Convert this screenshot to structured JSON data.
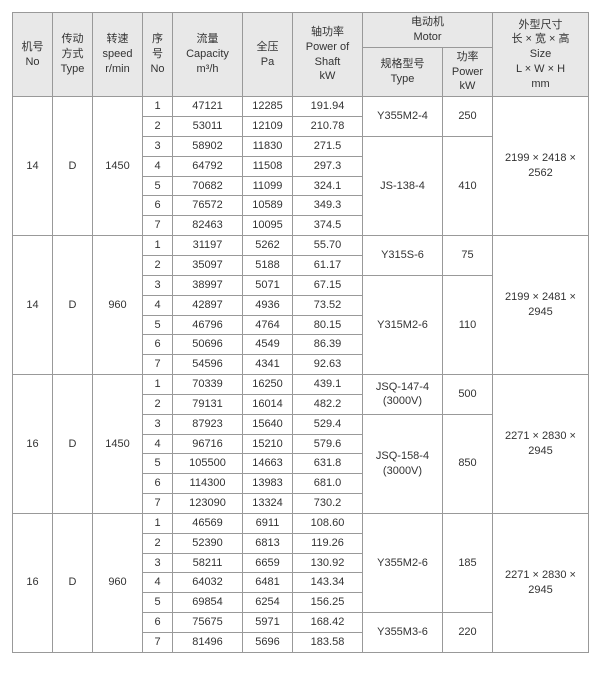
{
  "headers": {
    "no": [
      "机号",
      "No"
    ],
    "type": [
      "传动",
      "方式",
      "Type"
    ],
    "speed": [
      "转速",
      "speed",
      "r/min"
    ],
    "seq": [
      "序",
      "号",
      "No"
    ],
    "capacity": [
      "流量",
      "Capacity",
      "m³/h"
    ],
    "pressure": [
      "全压",
      "Pa"
    ],
    "shaft": [
      "轴功率",
      "Power of",
      "Shaft",
      "kW"
    ],
    "motor_group": [
      "电动机",
      "Motor"
    ],
    "motor_model": [
      "规格型号",
      "Type"
    ],
    "motor_power": [
      "功率",
      "Power",
      "kW"
    ],
    "size": [
      "外型尺寸",
      "长 × 宽 × 高",
      "Size",
      "L × W × H",
      "mm"
    ]
  },
  "groups": [
    {
      "no": "14",
      "type": "D",
      "speed": "1450",
      "size": "2199 × 2418 × 2562",
      "rows": [
        {
          "seq": "1",
          "cap": "47121",
          "p": "12285",
          "sh": "191.94"
        },
        {
          "seq": "2",
          "cap": "53011",
          "p": "12109",
          "sh": "210.78"
        },
        {
          "seq": "3",
          "cap": "58902",
          "p": "11830",
          "sh": "271.5"
        },
        {
          "seq": "4",
          "cap": "64792",
          "p": "11508",
          "sh": "297.3"
        },
        {
          "seq": "5",
          "cap": "70682",
          "p": "11099",
          "sh": "324.1"
        },
        {
          "seq": "6",
          "cap": "76572",
          "p": "10589",
          "sh": "349.3"
        },
        {
          "seq": "7",
          "cap": "82463",
          "p": "10095",
          "sh": "374.5"
        }
      ],
      "motors": [
        {
          "model": "Y355M2-4",
          "power": "250",
          "rows": 2
        },
        {
          "model": "JS-138-4",
          "power": "410",
          "rows": 5
        }
      ]
    },
    {
      "no": "14",
      "type": "D",
      "speed": "960",
      "size": "2199 × 2481 × 2945",
      "rows": [
        {
          "seq": "1",
          "cap": "31197",
          "p": "5262",
          "sh": "55.70"
        },
        {
          "seq": "2",
          "cap": "35097",
          "p": "5188",
          "sh": "61.17"
        },
        {
          "seq": "3",
          "cap": "38997",
          "p": "5071",
          "sh": "67.15"
        },
        {
          "seq": "4",
          "cap": "42897",
          "p": "4936",
          "sh": "73.52"
        },
        {
          "seq": "5",
          "cap": "46796",
          "p": "4764",
          "sh": "80.15"
        },
        {
          "seq": "6",
          "cap": "50696",
          "p": "4549",
          "sh": "86.39"
        },
        {
          "seq": "7",
          "cap": "54596",
          "p": "4341",
          "sh": "92.63"
        }
      ],
      "motors": [
        {
          "model": "Y315S-6",
          "power": "75",
          "rows": 2
        },
        {
          "model": "Y315M2-6",
          "power": "110",
          "rows": 5
        }
      ]
    },
    {
      "no": "16",
      "type": "D",
      "speed": "1450",
      "size": "2271 × 2830 × 2945",
      "rows": [
        {
          "seq": "1",
          "cap": "70339",
          "p": "16250",
          "sh": "439.1"
        },
        {
          "seq": "2",
          "cap": "79131",
          "p": "16014",
          "sh": "482.2"
        },
        {
          "seq": "3",
          "cap": "87923",
          "p": "15640",
          "sh": "529.4"
        },
        {
          "seq": "4",
          "cap": "96716",
          "p": "15210",
          "sh": "579.6"
        },
        {
          "seq": "5",
          "cap": "105500",
          "p": "14663",
          "sh": "631.8"
        },
        {
          "seq": "6",
          "cap": "114300",
          "p": "13983",
          "sh": "681.0"
        },
        {
          "seq": "7",
          "cap": "123090",
          "p": "13324",
          "sh": "730.2"
        }
      ],
      "motors": [
        {
          "model": "JSQ-147-4 (3000V)",
          "power": "500",
          "rows": 2
        },
        {
          "model": "JSQ-158-4 (3000V)",
          "power": "850",
          "rows": 5
        }
      ]
    },
    {
      "no": "16",
      "type": "D",
      "speed": "960",
      "size": "2271 × 2830 × 2945",
      "rows": [
        {
          "seq": "1",
          "cap": "46569",
          "p": "6911",
          "sh": "108.60"
        },
        {
          "seq": "2",
          "cap": "52390",
          "p": "6813",
          "sh": "119.26"
        },
        {
          "seq": "3",
          "cap": "58211",
          "p": "6659",
          "sh": "130.92"
        },
        {
          "seq": "4",
          "cap": "64032",
          "p": "6481",
          "sh": "143.34"
        },
        {
          "seq": "5",
          "cap": "69854",
          "p": "6254",
          "sh": "156.25"
        },
        {
          "seq": "6",
          "cap": "75675",
          "p": "5971",
          "sh": "168.42"
        },
        {
          "seq": "7",
          "cap": "81496",
          "p": "5696",
          "sh": "183.58"
        }
      ],
      "motors": [
        {
          "model": "Y355M2-6",
          "power": "185",
          "rows": 5
        },
        {
          "model": "Y355M3-6",
          "power": "220",
          "rows": 2
        }
      ]
    }
  ]
}
